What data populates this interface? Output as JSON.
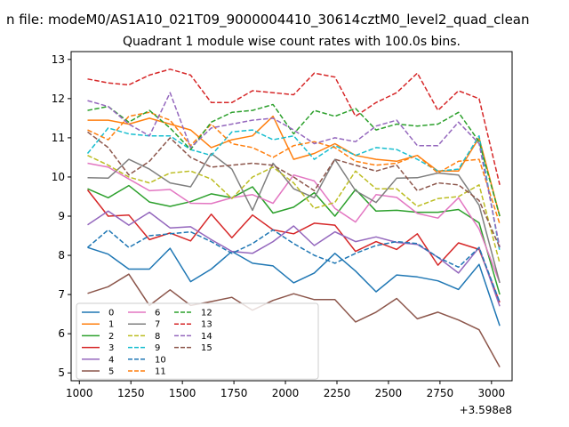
{
  "chart_data": {
    "type": "line",
    "suptitle": "n file: modeM0/AS1A10_021T09_9000004410_30614cztM0_level2_quad_clean",
    "title": "Quadrant 1 module wise count rates with 100.0s bins.",
    "xlabel": "",
    "ylabel": "",
    "x_offset_label": "+3.598e8",
    "xlim": [
      960,
      3100
    ],
    "ylim": [
      4.8,
      13.2
    ],
    "xticks": [
      1000,
      1250,
      1500,
      1750,
      2000,
      2250,
      2500,
      2750,
      3000
    ],
    "yticks": [
      5,
      6,
      7,
      8,
      9,
      10,
      11,
      12,
      13
    ],
    "x": [
      1040,
      1140,
      1240,
      1340,
      1440,
      1540,
      1640,
      1740,
      1840,
      1940,
      2040,
      2140,
      2240,
      2340,
      2440,
      2540,
      2640,
      2740,
      2840,
      2940,
      3040
    ],
    "legend_location": "lower-left",
    "series": [
      {
        "name": "0",
        "color": "#1f77b4",
        "dash": "solid",
        "values": [
          8.2,
          8.03,
          7.65,
          7.65,
          8.18,
          7.33,
          7.65,
          8.1,
          7.8,
          7.73,
          7.3,
          7.55,
          8.05,
          7.6,
          7.07,
          7.5,
          7.45,
          7.35,
          7.13,
          7.77,
          6.2
        ]
      },
      {
        "name": "1",
        "color": "#ff7f0e",
        "dash": "solid",
        "values": [
          11.45,
          11.45,
          11.35,
          11.5,
          11.35,
          11.2,
          10.75,
          10.95,
          11.05,
          11.55,
          10.45,
          10.6,
          10.85,
          10.55,
          10.45,
          10.4,
          10.55,
          10.15,
          10.15,
          11.0,
          9.0
        ]
      },
      {
        "name": "2",
        "color": "#2ca02c",
        "dash": "solid",
        "values": [
          9.7,
          9.47,
          9.78,
          9.36,
          9.25,
          9.37,
          9.57,
          9.47,
          9.75,
          9.08,
          9.23,
          9.6,
          9.0,
          9.68,
          9.13,
          9.15,
          9.1,
          9.1,
          9.17,
          8.83,
          7.0
        ]
      },
      {
        "name": "3",
        "color": "#d62728",
        "dash": "solid",
        "values": [
          9.67,
          9.0,
          9.03,
          8.4,
          8.57,
          8.37,
          9.05,
          8.45,
          9.03,
          8.65,
          8.55,
          8.82,
          8.77,
          8.1,
          8.35,
          8.15,
          8.55,
          7.75,
          8.32,
          8.15,
          6.8
        ]
      },
      {
        "name": "4",
        "color": "#9467bd",
        "dash": "solid",
        "values": [
          8.78,
          9.13,
          8.77,
          9.1,
          8.7,
          8.73,
          8.4,
          8.1,
          8.05,
          8.35,
          8.75,
          8.25,
          8.6,
          8.35,
          8.47,
          8.33,
          8.28,
          7.95,
          7.55,
          8.2,
          6.7
        ]
      },
      {
        "name": "5",
        "color": "#8c564b",
        "dash": "solid",
        "values": [
          7.03,
          7.2,
          7.52,
          6.72,
          7.12,
          6.72,
          6.82,
          6.93,
          6.6,
          6.85,
          7.02,
          6.87,
          6.87,
          6.3,
          6.55,
          6.9,
          6.38,
          6.55,
          6.35,
          6.1,
          5.15
        ]
      },
      {
        "name": "6",
        "color": "#e377c2",
        "dash": "solid",
        "values": [
          10.35,
          10.25,
          9.95,
          9.65,
          9.68,
          9.33,
          9.32,
          9.47,
          9.55,
          9.33,
          10.05,
          9.9,
          9.2,
          8.85,
          9.55,
          9.48,
          9.07,
          8.95,
          9.47,
          8.67,
          7.3
        ]
      },
      {
        "name": "7",
        "color": "#7f7f7f",
        "dash": "solid",
        "values": [
          9.98,
          9.97,
          10.45,
          10.2,
          9.85,
          9.75,
          10.6,
          10.2,
          9.15,
          10.35,
          9.7,
          9.47,
          10.45,
          9.65,
          9.35,
          9.97,
          9.98,
          10.1,
          10.05,
          9.28,
          7.3
        ]
      },
      {
        "name": "8",
        "color": "#bcbd22",
        "dash": "dashed",
        "values": [
          10.55,
          10.3,
          10.0,
          9.85,
          10.1,
          10.15,
          9.95,
          9.45,
          10.0,
          10.25,
          9.85,
          9.2,
          9.35,
          10.15,
          9.7,
          9.7,
          9.25,
          9.45,
          9.5,
          9.8,
          7.8
        ]
      },
      {
        "name": "9",
        "color": "#17becf",
        "dash": "dashed",
        "values": [
          10.6,
          11.25,
          11.1,
          11.05,
          11.05,
          10.7,
          10.55,
          11.15,
          11.2,
          10.95,
          11.05,
          10.45,
          10.8,
          10.55,
          10.75,
          10.7,
          10.45,
          10.15,
          10.2,
          11.05,
          8.1
        ]
      },
      {
        "name": "10",
        "color": "#1f77b4",
        "dash": "dashed",
        "values": [
          8.2,
          8.65,
          8.2,
          8.5,
          8.55,
          8.6,
          8.35,
          8.05,
          8.3,
          8.65,
          8.3,
          8.0,
          7.8,
          8.05,
          8.25,
          8.35,
          8.3,
          7.95,
          7.7,
          8.2,
          6.8
        ]
      },
      {
        "name": "11",
        "color": "#ff7f0e",
        "dash": "dashed",
        "values": [
          11.2,
          10.95,
          11.55,
          11.65,
          11.45,
          10.8,
          11.35,
          10.85,
          10.75,
          10.5,
          10.8,
          10.9,
          10.75,
          10.4,
          10.3,
          10.35,
          10.55,
          10.1,
          10.4,
          10.45,
          8.8
        ]
      },
      {
        "name": "12",
        "color": "#2ca02c",
        "dash": "dashed",
        "values": [
          11.7,
          11.8,
          11.4,
          11.7,
          11.25,
          10.7,
          11.4,
          11.65,
          11.7,
          11.85,
          11.1,
          11.7,
          11.55,
          11.75,
          11.2,
          11.35,
          11.3,
          11.35,
          11.65,
          10.9,
          9.0
        ]
      },
      {
        "name": "13",
        "color": "#d62728",
        "dash": "dashed",
        "values": [
          12.5,
          12.4,
          12.35,
          12.6,
          12.75,
          12.6,
          11.9,
          11.9,
          12.2,
          12.15,
          12.1,
          12.65,
          12.55,
          11.55,
          11.9,
          12.15,
          12.65,
          11.7,
          12.2,
          12.0,
          9.8
        ]
      },
      {
        "name": "14",
        "color": "#9467bd",
        "dash": "dashed",
        "values": [
          11.95,
          11.8,
          11.35,
          11.05,
          12.15,
          10.75,
          11.25,
          11.35,
          11.45,
          11.5,
          11.2,
          10.85,
          11.0,
          10.9,
          11.3,
          11.45,
          10.8,
          10.8,
          11.4,
          10.85,
          8.2
        ]
      },
      {
        "name": "15",
        "color": "#8c564b",
        "dash": "dashed",
        "values": [
          11.15,
          10.75,
          10.05,
          10.4,
          11.0,
          10.5,
          10.25,
          10.3,
          10.35,
          10.3,
          10.0,
          9.65,
          10.45,
          10.3,
          10.15,
          10.3,
          9.65,
          9.85,
          9.8,
          9.4,
          8.2
        ]
      }
    ]
  }
}
